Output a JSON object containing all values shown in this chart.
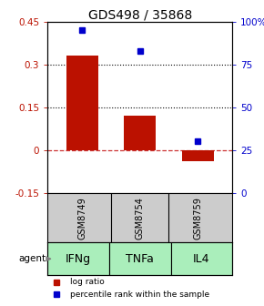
{
  "title": "GDS498 / 35868",
  "samples": [
    "GSM8749",
    "GSM8754",
    "GSM8759"
  ],
  "agents": [
    "IFNg",
    "TNFa",
    "IL4"
  ],
  "log_ratios": [
    0.33,
    0.12,
    -0.04
  ],
  "percentile_ranks": [
    95,
    83,
    30
  ],
  "ylim_left": [
    -0.15,
    0.45
  ],
  "ylim_right": [
    0,
    100
  ],
  "left_ticks": [
    -0.15,
    0,
    0.15,
    0.3,
    0.45
  ],
  "right_ticks": [
    0,
    25,
    50,
    75,
    100
  ],
  "right_tick_labels": [
    "0",
    "25",
    "50",
    "75",
    "100%"
  ],
  "bar_color": "#bb1100",
  "dot_color": "#0000cc",
  "agent_bg_color_light": "#aaeebb",
  "agent_bg_color_dark": "#55cc77",
  "sample_bg_color": "#cccccc",
  "dotted_lines": [
    0.15,
    0.3
  ],
  "zero_line_color": "#cc3333",
  "bar_width": 0.55,
  "title_fontsize": 10,
  "tick_fontsize": 7.5,
  "sample_fontsize": 7,
  "agent_fontsize": 9,
  "legend_fontsize": 6.5
}
